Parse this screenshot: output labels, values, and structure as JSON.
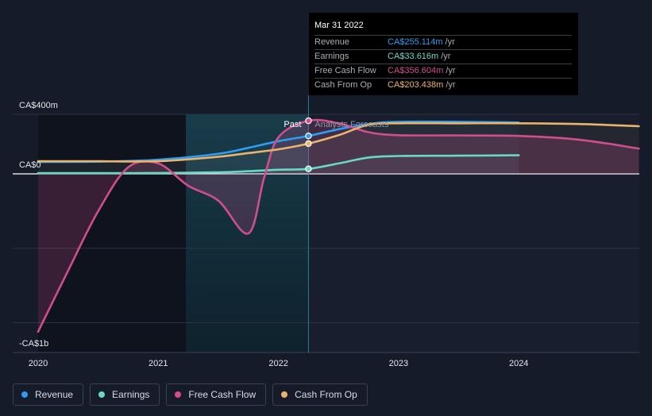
{
  "chart_data": {
    "type": "line",
    "x_ticks": [
      "2020",
      "2021",
      "2022",
      "2023",
      "2024"
    ],
    "y_labels": [
      "CA$400m",
      "CA$0",
      "-CA$1b"
    ],
    "divider_labels": {
      "past": "Past",
      "forecast": "Analysts Forecasts"
    },
    "past_end": 2022.25,
    "series": [
      {
        "name": "Revenue",
        "color": "#2e9cef",
        "points": [
          [
            2020.0,
            80
          ],
          [
            2020.5,
            82
          ],
          [
            2021.0,
            95
          ],
          [
            2021.5,
            135
          ],
          [
            2021.75,
            175
          ],
          [
            2022.0,
            220
          ],
          [
            2022.25,
            255
          ],
          [
            2022.5,
            300
          ],
          [
            2022.75,
            335
          ],
          [
            2023.0,
            350
          ],
          [
            2023.5,
            350
          ],
          [
            2024.0,
            345
          ]
        ]
      },
      {
        "name": "Earnings",
        "color": "#6ad8c5",
        "points": [
          [
            2020.0,
            5
          ],
          [
            2020.5,
            5
          ],
          [
            2021.0,
            6
          ],
          [
            2021.5,
            10
          ],
          [
            2021.75,
            18
          ],
          [
            2022.0,
            28
          ],
          [
            2022.25,
            33.6
          ],
          [
            2022.5,
            70
          ],
          [
            2022.75,
            110
          ],
          [
            2023.0,
            120
          ],
          [
            2023.5,
            122
          ],
          [
            2024.0,
            125
          ]
        ]
      },
      {
        "name": "Free Cash Flow",
        "color": "#d04e8e",
        "points": [
          [
            2020.0,
            -1060
          ],
          [
            2020.25,
            -650
          ],
          [
            2020.5,
            -250
          ],
          [
            2020.75,
            45
          ],
          [
            2021.0,
            70
          ],
          [
            2021.25,
            -80
          ],
          [
            2021.5,
            -180
          ],
          [
            2021.75,
            -400
          ],
          [
            2021.88,
            -30
          ],
          [
            2022.0,
            245
          ],
          [
            2022.25,
            356.6
          ],
          [
            2022.5,
            340
          ],
          [
            2022.75,
            280
          ],
          [
            2023.0,
            260
          ],
          [
            2023.5,
            258
          ],
          [
            2024.0,
            255
          ],
          [
            2024.5,
            230
          ],
          [
            2025.0,
            170
          ]
        ]
      },
      {
        "name": "Cash From Op",
        "color": "#e9b46b",
        "points": [
          [
            2020.0,
            85
          ],
          [
            2020.5,
            85
          ],
          [
            2021.0,
            85
          ],
          [
            2021.5,
            115
          ],
          [
            2021.75,
            140
          ],
          [
            2022.0,
            165
          ],
          [
            2022.25,
            203.4
          ],
          [
            2022.5,
            260
          ],
          [
            2022.75,
            330
          ],
          [
            2023.0,
            340
          ],
          [
            2023.5,
            340
          ],
          [
            2024.0,
            340
          ],
          [
            2024.5,
            335
          ],
          [
            2025.0,
            320
          ]
        ]
      }
    ]
  },
  "tooltip": {
    "date": "Mar 31 2022",
    "rows": [
      {
        "label": "Revenue",
        "value": "CA$255.114m",
        "unit": "/yr",
        "color": "#2e9cef"
      },
      {
        "label": "Earnings",
        "value": "CA$33.616m",
        "unit": "/yr",
        "color": "#6ad8c5"
      },
      {
        "label": "Free Cash Flow",
        "value": "CA$356.604m",
        "unit": "/yr",
        "color": "#d04e8e"
      },
      {
        "label": "Cash From Op",
        "value": "CA$203.438m",
        "unit": "/yr",
        "color": "#e9b46b"
      }
    ]
  },
  "legend": [
    {
      "label": "Revenue",
      "color": "#2e9cef"
    },
    {
      "label": "Earnings",
      "color": "#6ad8c5"
    },
    {
      "label": "Free Cash Flow",
      "color": "#d04e8e"
    },
    {
      "label": "Cash From Op",
      "color": "#e9b46b"
    }
  ]
}
